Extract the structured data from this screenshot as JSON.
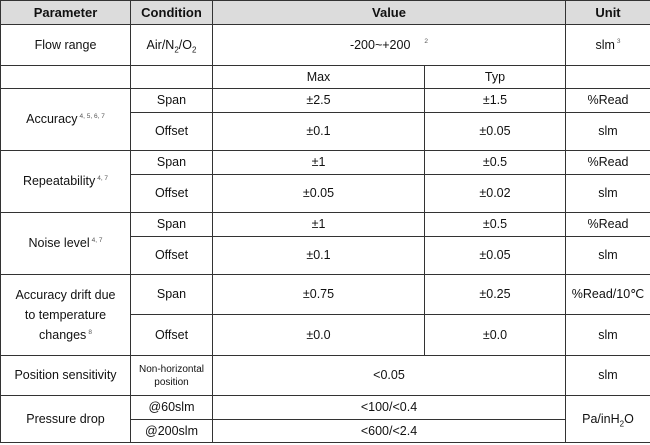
{
  "headers": {
    "parameter": "Parameter",
    "condition": "Condition",
    "value": "Value",
    "unit": "Unit"
  },
  "flow_range": {
    "label": "Flow range",
    "condition_main": "Air/N",
    "condition_sub1": "2",
    "condition_mid": "/O",
    "condition_sub2": "2",
    "value": "-200~+200",
    "value_note": "2",
    "unit": "slm",
    "unit_note": "3"
  },
  "subheader": {
    "max": "Max",
    "typ": "Typ"
  },
  "accuracy": {
    "label": "Accuracy",
    "note": "4, 5, 6, 7",
    "span": {
      "condition": "Span",
      "max": "±2.5",
      "typ": "±1.5",
      "unit": "%Read"
    },
    "offset": {
      "condition": "Offset",
      "max": "±0.1",
      "typ": "±0.05",
      "unit": "slm"
    }
  },
  "repeatability": {
    "label": "Repeatability",
    "note": "4, 7",
    "span": {
      "condition": "Span",
      "max": "±1",
      "typ": "±0.5",
      "unit": "%Read"
    },
    "offset": {
      "condition": "Offset",
      "max": "±0.05",
      "typ": "±0.02",
      "unit": "slm"
    }
  },
  "noise": {
    "label": "Noise level",
    "note": "4, 7",
    "span": {
      "condition": "Span",
      "max": "±1",
      "typ": "±0.5",
      "unit": "%Read"
    },
    "offset": {
      "condition": "Offset",
      "max": "±0.1",
      "typ": "±0.05",
      "unit": "slm"
    }
  },
  "drift": {
    "label_line1": "Accuracy drift due",
    "label_line2": "to temperature",
    "label_line3": "changes",
    "note": "8",
    "span": {
      "condition": "Span",
      "max": "±0.75",
      "typ": "±0.25",
      "unit": "%Read/10℃"
    },
    "offset": {
      "condition": "Offset",
      "max": "±0.0",
      "typ": "±0.0",
      "unit": "slm"
    }
  },
  "position": {
    "label": "Position sensitivity",
    "condition_line1": "Non-horizontal",
    "condition_line2": "position",
    "value": "<0.05",
    "unit": "slm"
  },
  "pressure": {
    "label": "Pressure drop",
    "row1": {
      "condition": "@60slm",
      "value": "<100/<0.4"
    },
    "row2": {
      "condition": "@200slm",
      "value": "<600/<2.4"
    },
    "unit_main": "Pa/inH",
    "unit_sub": "2",
    "unit_tail": "O"
  }
}
